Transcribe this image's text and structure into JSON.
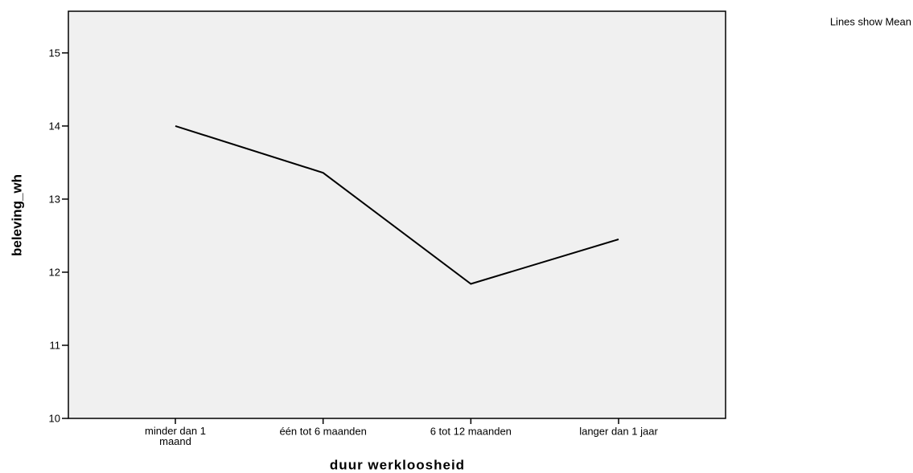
{
  "chart_data": {
    "type": "line",
    "note": "Lines show Mean",
    "xlabel": "duur werkloosheid",
    "ylabel": "beleving_wh",
    "categories": [
      "minder dan 1 maand",
      "één tot 6 maanden",
      "6 tot 12 maanden",
      "langer dan 1 jaar"
    ],
    "series": [
      {
        "name": "Mean",
        "color": "#000000",
        "values": [
          14.0,
          13.36,
          11.84,
          12.45
        ]
      }
    ],
    "ylim": [
      10,
      15.57
    ],
    "yticks": [
      10,
      11,
      12,
      13,
      14,
      15
    ],
    "background": "#f0f0f0"
  }
}
